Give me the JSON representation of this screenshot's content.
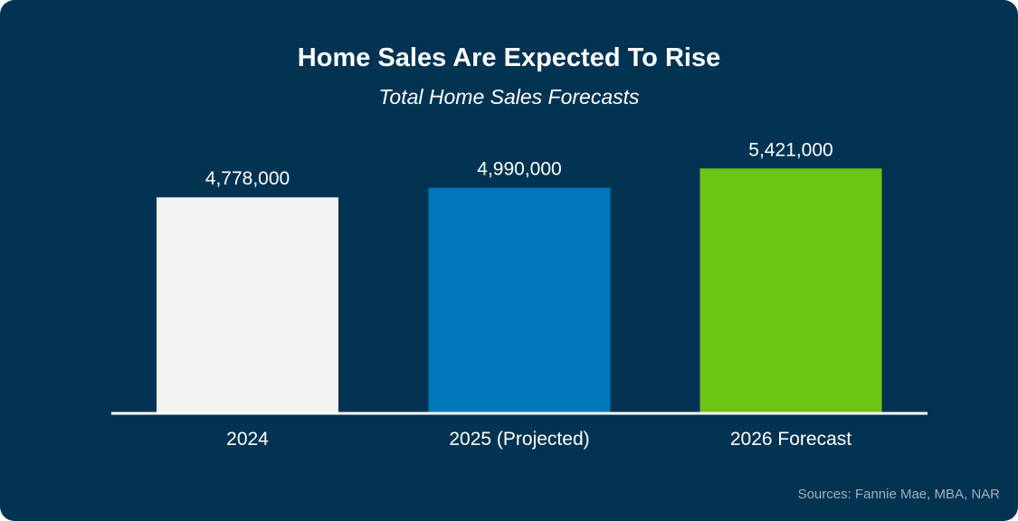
{
  "colors": {
    "background": "#023353",
    "axis": "#ffffff",
    "text": "#ffffff",
    "source_text": "#a3afbd"
  },
  "chart_data": {
    "type": "bar",
    "title": "Home Sales Are Expected To Rise",
    "subtitle": "Total Home Sales Forecasts",
    "categories": [
      "2024",
      "2025 (Projected)",
      "2026 Forecast"
    ],
    "values": [
      4778000,
      4990000,
      5421000
    ],
    "data_labels": [
      "4,778,000",
      "4,990,000",
      "5,421,000"
    ],
    "bar_colors": [
      "#f2f3f2",
      "#0077bb",
      "#6cc514"
    ],
    "xlabel": "",
    "ylabel": "",
    "ylim": [
      0,
      6000000
    ],
    "grid": false,
    "legend": "none",
    "source": "Sources: Fannie Mae, MBA, NAR"
  }
}
